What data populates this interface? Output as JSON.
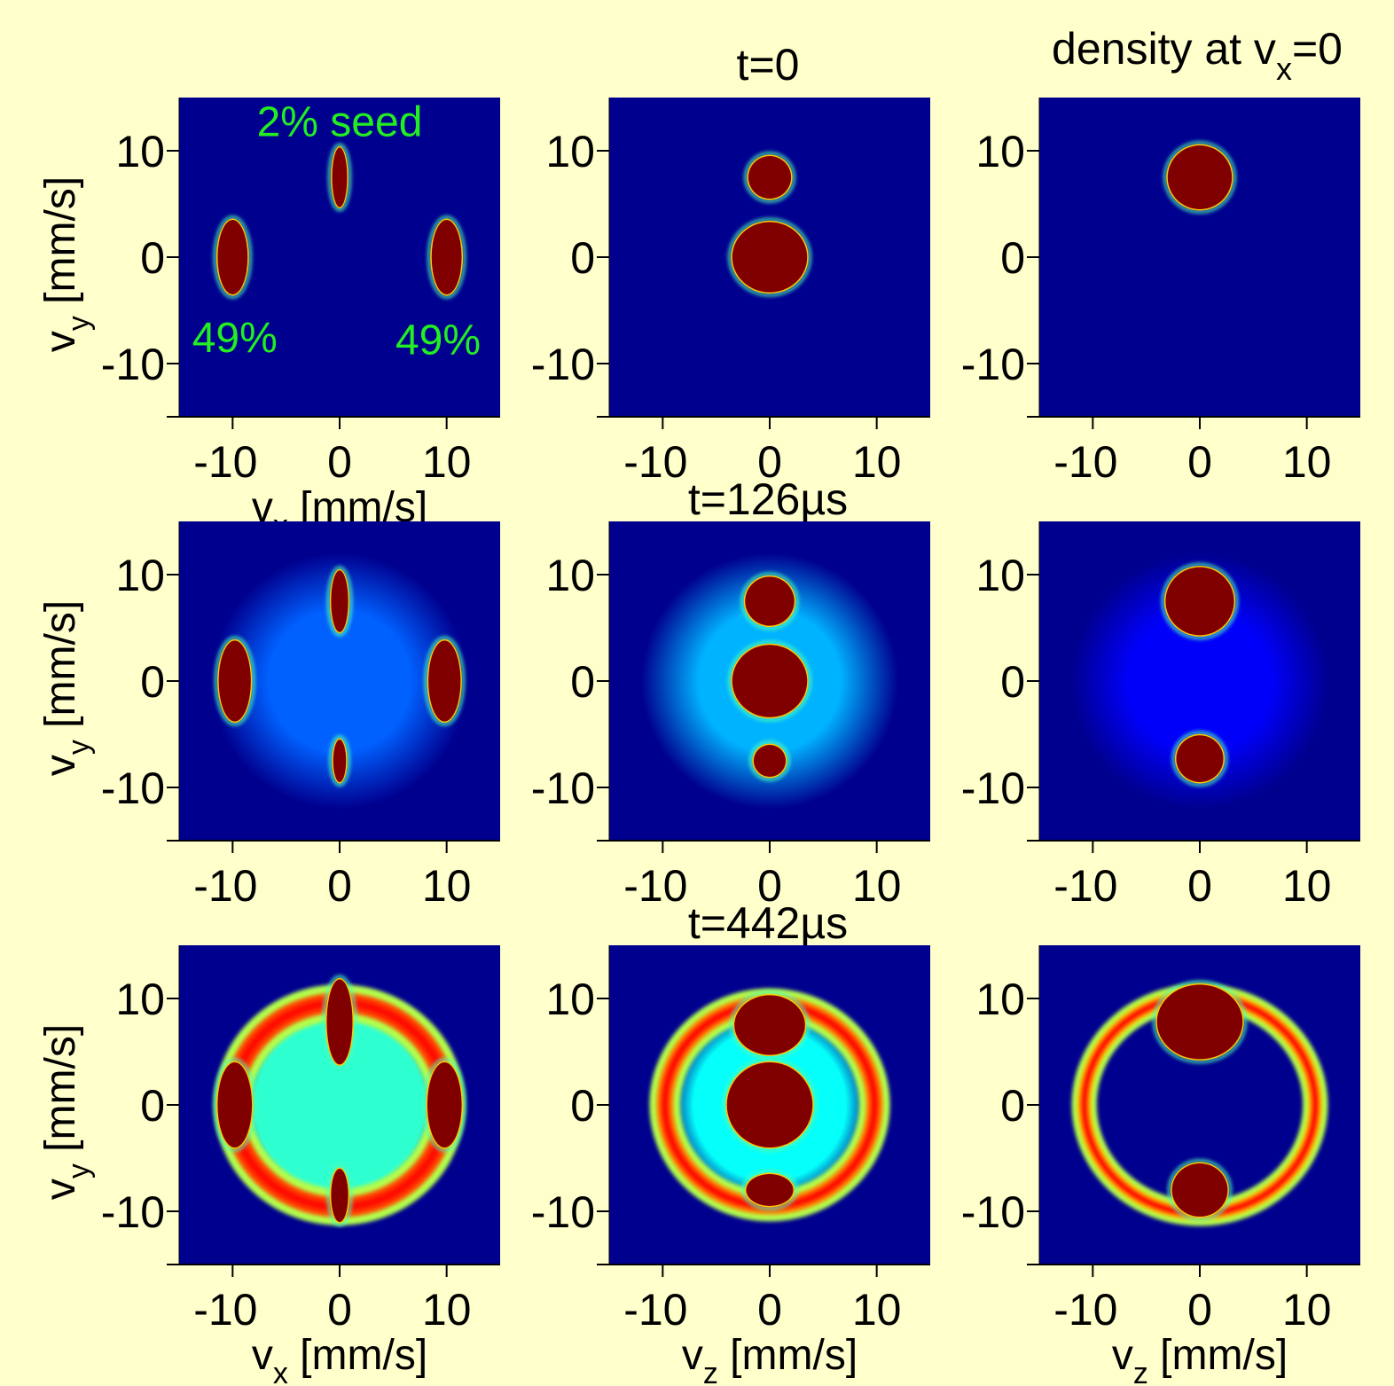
{
  "figure": {
    "background": "#ffffcc",
    "plot_background": "#00008f",
    "colormap": "jet",
    "columns": [
      {
        "title": "",
        "subtitle": ""
      },
      {
        "title": "t=0",
        "subtitle": ""
      },
      {
        "title": "density at v",
        "title_sub": "x",
        "title_tail": "=0"
      }
    ],
    "row_titles": [
      "t=0",
      "t=126µs",
      "t=442µs"
    ]
  },
  "chart_data": [
    {
      "type": "heatmap",
      "panel": "row1-col1",
      "time": "t=0",
      "xlabel": {
        "main": "v",
        "sub": "x",
        "unit": " [mm/s]"
      },
      "ylabel": {
        "main": "v",
        "sub": "y",
        "unit": " [mm/s]"
      },
      "xlim": [
        -15,
        15
      ],
      "ylim": [
        -15,
        15
      ],
      "xticks": [
        -10,
        0,
        10
      ],
      "yticks": [
        -10,
        0,
        10
      ],
      "blobs": [
        {
          "x": 0,
          "y": 7.5,
          "rx": 0.7,
          "ry": 2.8,
          "level": 1.0
        },
        {
          "x": -10,
          "y": 0,
          "rx": 1.4,
          "ry": 3.5,
          "level": 1.0
        },
        {
          "x": 10,
          "y": 0,
          "rx": 1.4,
          "ry": 3.5,
          "level": 1.0
        }
      ],
      "halo": null,
      "ring": null,
      "annotations": [
        {
          "text": "2% seed",
          "x": 0,
          "y": 12.8
        },
        {
          "text": "49%",
          "x": -9.8,
          "y": -7.5
        },
        {
          "text": "49%",
          "x": 9.2,
          "y": -7.7
        }
      ]
    },
    {
      "type": "heatmap",
      "panel": "row1-col2",
      "time": "t=0",
      "xlabel": {
        "main": "",
        "sub": "",
        "unit": ""
      },
      "ylabel": {
        "main": "",
        "sub": "",
        "unit": ""
      },
      "xlim": [
        -15,
        15
      ],
      "ylim": [
        -15,
        15
      ],
      "xticks": [
        -10,
        0,
        10
      ],
      "yticks": [
        -10,
        0,
        10
      ],
      "blobs": [
        {
          "x": 0,
          "y": 7.5,
          "rx": 2.0,
          "ry": 2.0,
          "level": 1.0
        },
        {
          "x": 0,
          "y": 0,
          "rx": 3.5,
          "ry": 3.3,
          "level": 1.0
        }
      ],
      "halo": null,
      "ring": null,
      "annotations": []
    },
    {
      "type": "heatmap",
      "panel": "row1-col3",
      "time": "t=0",
      "xlabel": {
        "main": "",
        "sub": "",
        "unit": ""
      },
      "ylabel": {
        "main": "",
        "sub": "",
        "unit": ""
      },
      "xlim": [
        -15,
        15
      ],
      "ylim": [
        -15,
        15
      ],
      "xticks": [
        -10,
        0,
        10
      ],
      "yticks": [
        -10,
        0,
        10
      ],
      "blobs": [
        {
          "x": 0,
          "y": 7.5,
          "rx": 3.0,
          "ry": 3.0,
          "level": 1.0
        }
      ],
      "halo": null,
      "ring": null,
      "annotations": []
    },
    {
      "type": "heatmap",
      "panel": "row2-col1",
      "time": "t=126µs",
      "xlabel": {
        "main": "",
        "sub": "",
        "unit": ""
      },
      "ylabel": {
        "main": "v",
        "sub": "y",
        "unit": " [mm/s]"
      },
      "xlim": [
        -15,
        15
      ],
      "ylim": [
        -15,
        15
      ],
      "xticks": [
        -10,
        0,
        10
      ],
      "yticks": [
        -10,
        0,
        10
      ],
      "blobs": [
        {
          "x": 0,
          "y": 7.5,
          "rx": 0.8,
          "ry": 2.9,
          "level": 1.0
        },
        {
          "x": 0,
          "y": -7.5,
          "rx": 0.6,
          "ry": 2.0,
          "level": 1.0
        },
        {
          "x": -9.8,
          "y": 0,
          "rx": 1.5,
          "ry": 3.8,
          "level": 1.0
        },
        {
          "x": 9.8,
          "y": 0,
          "rx": 1.5,
          "ry": 3.8,
          "level": 1.0
        }
      ],
      "halo": {
        "x": 0,
        "y": 0,
        "r": 12.0,
        "level": 0.22
      },
      "ring": null,
      "annotations": []
    },
    {
      "type": "heatmap",
      "panel": "row2-col2",
      "time": "t=126µs",
      "xlabel": {
        "main": "",
        "sub": "",
        "unit": ""
      },
      "ylabel": {
        "main": "",
        "sub": "",
        "unit": ""
      },
      "xlim": [
        -15,
        15
      ],
      "ylim": [
        -15,
        15
      ],
      "xticks": [
        -10,
        0,
        10
      ],
      "yticks": [
        -10,
        0,
        10
      ],
      "blobs": [
        {
          "x": 0,
          "y": 7.5,
          "rx": 2.3,
          "ry": 2.3,
          "level": 1.0
        },
        {
          "x": 0,
          "y": 0,
          "rx": 3.5,
          "ry": 3.4,
          "level": 1.0
        },
        {
          "x": 0,
          "y": -7.5,
          "rx": 1.5,
          "ry": 1.5,
          "level": 1.0
        }
      ],
      "halo": {
        "x": 0,
        "y": 0,
        "r": 12.0,
        "level": 0.3
      },
      "ring": null,
      "annotations": []
    },
    {
      "type": "heatmap",
      "panel": "row2-col3",
      "time": "t=126µs",
      "xlabel": {
        "main": "",
        "sub": "",
        "unit": ""
      },
      "ylabel": {
        "main": "",
        "sub": "",
        "unit": ""
      },
      "xlim": [
        -15,
        15
      ],
      "ylim": [
        -15,
        15
      ],
      "xticks": [
        -10,
        0,
        10
      ],
      "yticks": [
        -10,
        0,
        10
      ],
      "blobs": [
        {
          "x": 0,
          "y": 7.5,
          "rx": 3.2,
          "ry": 3.2,
          "level": 1.0
        },
        {
          "x": 0,
          "y": -7.3,
          "rx": 2.2,
          "ry": 2.2,
          "level": 1.0
        }
      ],
      "halo": {
        "x": 0,
        "y": 0,
        "r": 12.0,
        "level": 0.12
      },
      "ring": null,
      "annotations": []
    },
    {
      "type": "heatmap",
      "panel": "row3-col1",
      "time": "t=442µs",
      "xlabel": {
        "main": "v",
        "sub": "x",
        "unit": " [mm/s]"
      },
      "ylabel": {
        "main": "v",
        "sub": "y",
        "unit": " [mm/s]"
      },
      "xlim": [
        -15,
        15
      ],
      "ylim": [
        -15,
        15
      ],
      "xticks": [
        -10,
        0,
        10
      ],
      "yticks": [
        -10,
        0,
        10
      ],
      "blobs": [
        {
          "x": 0,
          "y": 7.8,
          "rx": 1.2,
          "ry": 4.0,
          "level": 1.0
        },
        {
          "x": 0,
          "y": -8.5,
          "rx": 0.8,
          "ry": 2.5,
          "level": 1.0
        },
        {
          "x": -9.8,
          "y": 0,
          "rx": 1.6,
          "ry": 4.0,
          "level": 1.0
        },
        {
          "x": 9.8,
          "y": 0,
          "rx": 1.6,
          "ry": 4.0,
          "level": 1.0
        }
      ],
      "halo": {
        "x": 0,
        "y": 0,
        "rx": 10.5,
        "ry": 10.5,
        "level": 0.42
      },
      "ring": {
        "x": 0,
        "y": 0,
        "rx": 10.0,
        "ry": 9.6,
        "width": 1.9,
        "level": 0.8
      },
      "annotations": []
    },
    {
      "type": "heatmap",
      "panel": "row3-col2",
      "time": "t=442µs",
      "xlabel": {
        "main": "v",
        "sub": "z",
        "unit": " [mm/s]"
      },
      "ylabel": {
        "main": "",
        "sub": "",
        "unit": ""
      },
      "xlim": [
        -15,
        15
      ],
      "ylim": [
        -15,
        15
      ],
      "xticks": [
        -10,
        0,
        10
      ],
      "yticks": [
        -10,
        0,
        10
      ],
      "blobs": [
        {
          "x": 0,
          "y": 7.5,
          "rx": 3.3,
          "ry": 2.8,
          "level": 1.0
        },
        {
          "x": 0,
          "y": 0,
          "rx": 4.0,
          "ry": 4.0,
          "level": 1.0
        },
        {
          "x": 0,
          "y": -8.0,
          "rx": 2.2,
          "ry": 1.5,
          "level": 1.0
        }
      ],
      "halo": {
        "x": 0,
        "y": 0,
        "rx": 9.5,
        "ry": 9.5,
        "level": 0.38
      },
      "ring": {
        "x": 0,
        "y": 0,
        "rx": 9.8,
        "ry": 9.5,
        "width": 1.6,
        "level": 0.75
      },
      "annotations": []
    },
    {
      "type": "heatmap",
      "panel": "row3-col3",
      "time": "t=442µs",
      "xlabel": {
        "main": "v",
        "sub": "z",
        "unit": " [mm/s]"
      },
      "ylabel": {
        "main": "",
        "sub": "",
        "unit": ""
      },
      "xlim": [
        -15,
        15
      ],
      "ylim": [
        -15,
        15
      ],
      "xticks": [
        -10,
        0,
        10
      ],
      "yticks": [
        -10,
        0,
        10
      ],
      "blobs": [
        {
          "x": 0,
          "y": 7.8,
          "rx": 4.0,
          "ry": 3.5,
          "level": 1.0
        },
        {
          "x": 0,
          "y": -8.0,
          "rx": 2.6,
          "ry": 2.5,
          "level": 1.0
        }
      ],
      "halo": null,
      "ring": {
        "x": 0,
        "y": 0,
        "rx": 10.8,
        "ry": 10.2,
        "width": 1.3,
        "level": 0.7
      },
      "annotations": []
    }
  ]
}
